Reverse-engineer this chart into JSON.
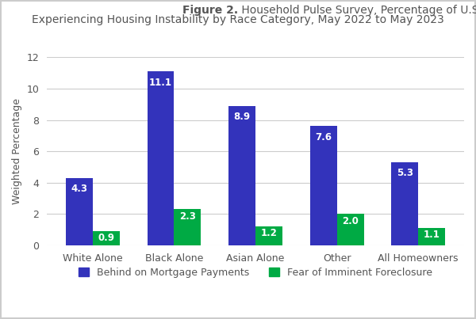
{
  "title_bold": "Figure 2.",
  "title_line1_rest": " Household Pulse Survey, Percentage of U.S. Homeowner Households",
  "title_line2": "Experiencing Housing Instability by Race Category, May 2022 to May 2023",
  "categories": [
    "White Alone",
    "Black Alone",
    "Asian Alone",
    "Other",
    "All Homeowners"
  ],
  "mortgage_values": [
    4.3,
    11.1,
    8.9,
    7.6,
    5.3
  ],
  "foreclosure_values": [
    0.9,
    2.3,
    1.2,
    2.0,
    1.1
  ],
  "mortgage_color": "#3333BB",
  "foreclosure_color": "#00AA44",
  "ylabel": "Weighted Percentage",
  "ylim": [
    0,
    12
  ],
  "yticks": [
    0,
    2,
    4,
    6,
    8,
    10,
    12
  ],
  "legend_mortgage": "Behind on Mortgage Payments",
  "legend_foreclosure": "Fear of Imminent Foreclosure",
  "bar_width": 0.33,
  "title_fontsize": 10,
  "label_fontsize": 9,
  "tick_fontsize": 9,
  "legend_fontsize": 9,
  "value_fontsize": 8.5,
  "background_color": "#ffffff",
  "plot_background_color": "#ffffff",
  "border_color": "#cccccc",
  "text_color": "#555555",
  "grid_color": "#cccccc"
}
